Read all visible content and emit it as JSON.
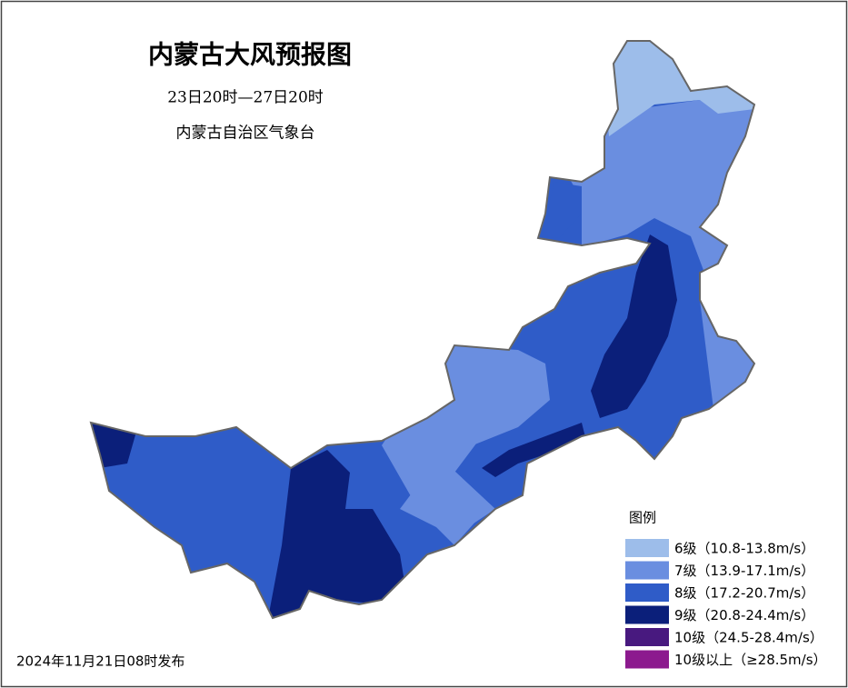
{
  "header": {
    "title": "内蒙古大风预报图",
    "subtitle": "23日20时—27日20时",
    "issuer": "内蒙古自治区气象台"
  },
  "footer": {
    "issued": "2024年11月21日08时发布"
  },
  "legend": {
    "title": "图例",
    "items": [
      {
        "label": "6级（10.8-13.8m/s）",
        "color": "#9dbdea"
      },
      {
        "label": "7级（13.9-17.1m/s）",
        "color": "#6a8ee0"
      },
      {
        "label": "8级（17.2-20.7m/s）",
        "color": "#2f5cc8"
      },
      {
        "label": "9级（20.8-24.4m/s）",
        "color": "#0b1f7a"
      },
      {
        "label": "10级（24.5-28.4m/s）",
        "color": "#48197f"
      },
      {
        "label": "10级以上（≥28.5m/s）",
        "color": "#8c1a8e"
      }
    ]
  }
}
